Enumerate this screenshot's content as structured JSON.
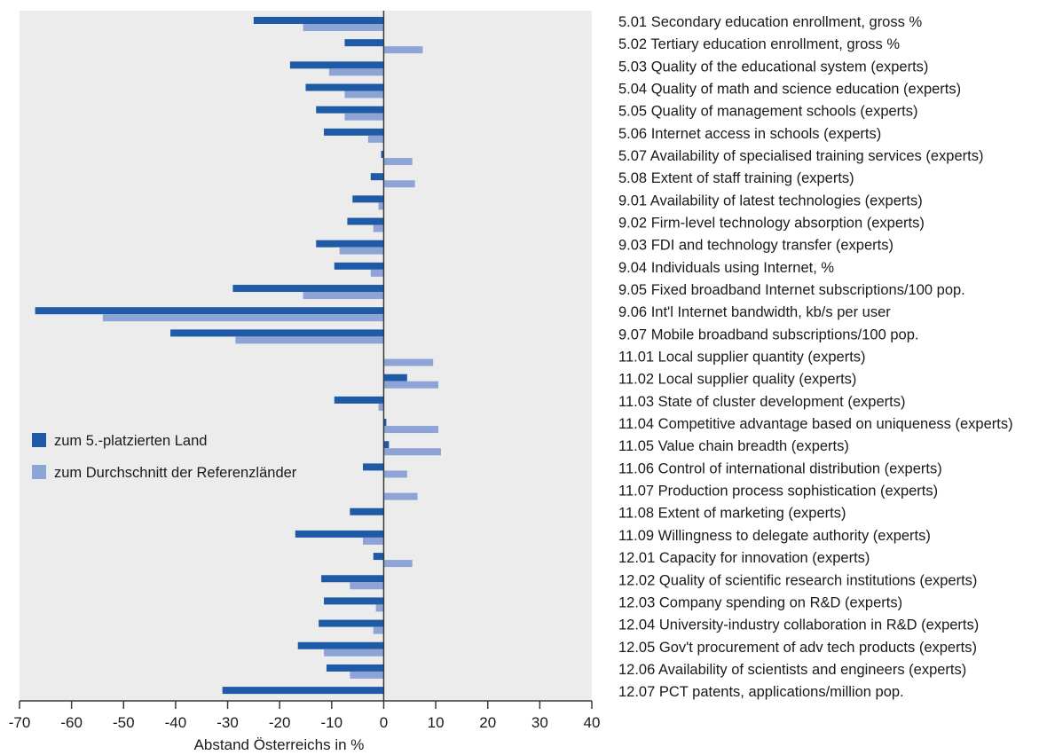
{
  "chart_data": {
    "type": "bar",
    "orientation": "horizontal",
    "xlabel": "Abstand Österreichs in %",
    "xlim": [
      -70,
      40
    ],
    "xticks": [
      -70,
      -60,
      -50,
      -40,
      -30,
      -20,
      -10,
      0,
      10,
      20,
      30,
      40
    ],
    "xtick_labels": [
      "-70",
      "-60",
      "-50",
      "-40",
      "-30",
      "-20",
      "-10",
      "0",
      "10",
      "20",
      "30",
      "40"
    ],
    "grid": false,
    "legend_position": "left-middle",
    "categories": [
      "5.01 Secondary education enrollment, gross %",
      "5.02 Tertiary education enrollment, gross %",
      "5.03 Quality of the educational system (experts)",
      "5.04 Quality of math and science education (experts)",
      "5.05 Quality of management schools (experts)",
      "5.06 Internet access in schools (experts)",
      "5.07 Availability of specialised training services (experts)",
      "5.08 Extent of staff training (experts)",
      "9.01 Availability of latest technologies (experts)",
      "9.02 Firm-level technology absorption (experts)",
      "9.03 FDI and technology transfer (experts)",
      "9.04 Individuals using Internet, %",
      "9.05 Fixed broadband Internet subscriptions/100 pop.",
      "9.06 Int'l Internet bandwidth, kb/s per user",
      "9.07 Mobile broadband subscriptions/100 pop.",
      "11.01 Local supplier quantity (experts)",
      "11.02 Local supplier quality (experts)",
      "11.03 State of cluster development (experts)",
      "11.04 Competitive advantage based on uniqueness (experts)",
      "11.05 Value chain breadth (experts)",
      "11.06 Control of international distribution (experts)",
      "11.07 Production process sophistication (experts)",
      "11.08 Extent of marketing (experts)",
      "11.09 Willingness to delegate authority (experts)",
      "12.01 Capacity for innovation (experts)",
      "12.02 Quality of scientific research institutions (experts)",
      "12.03 Company spending on R&D (experts)",
      "12.04 University-industry collaboration in R&D (experts)",
      "12.05 Gov't procurement of adv tech products (experts)",
      "12.06 Availability of scientists and engineers (experts)",
      "12.07 PCT patents, applications/million pop."
    ],
    "series": [
      {
        "name": "zum 5.-platzierten Land",
        "color": "#1f5aa6",
        "values": [
          -25,
          -7.5,
          -18,
          -15,
          -13,
          -11.5,
          -0.5,
          -2.5,
          -6,
          -7,
          -13,
          -9.5,
          -29,
          -67,
          -41,
          0,
          4.5,
          -9.5,
          0.5,
          1,
          -4,
          0,
          -6.5,
          -17,
          -2,
          -12,
          -11.5,
          -12.5,
          -16.5,
          -11,
          -31
        ]
      },
      {
        "name": "zum Durchschnitt der Referenzländer",
        "color": "#8fa4d6",
        "values": [
          -15.5,
          7.5,
          -10.5,
          -7.5,
          -7.5,
          -3,
          5.5,
          6,
          -1,
          -2,
          -8.5,
          -2.5,
          -15.5,
          -54,
          -28.5,
          9.5,
          10.5,
          -1,
          10.5,
          11,
          4.5,
          6.5,
          0,
          -4,
          5.5,
          -6.5,
          -1.5,
          -2,
          -11.5,
          -6.5,
          0
        ]
      }
    ],
    "background_color": "#ececed",
    "axis_color": "#3a3a3a"
  }
}
